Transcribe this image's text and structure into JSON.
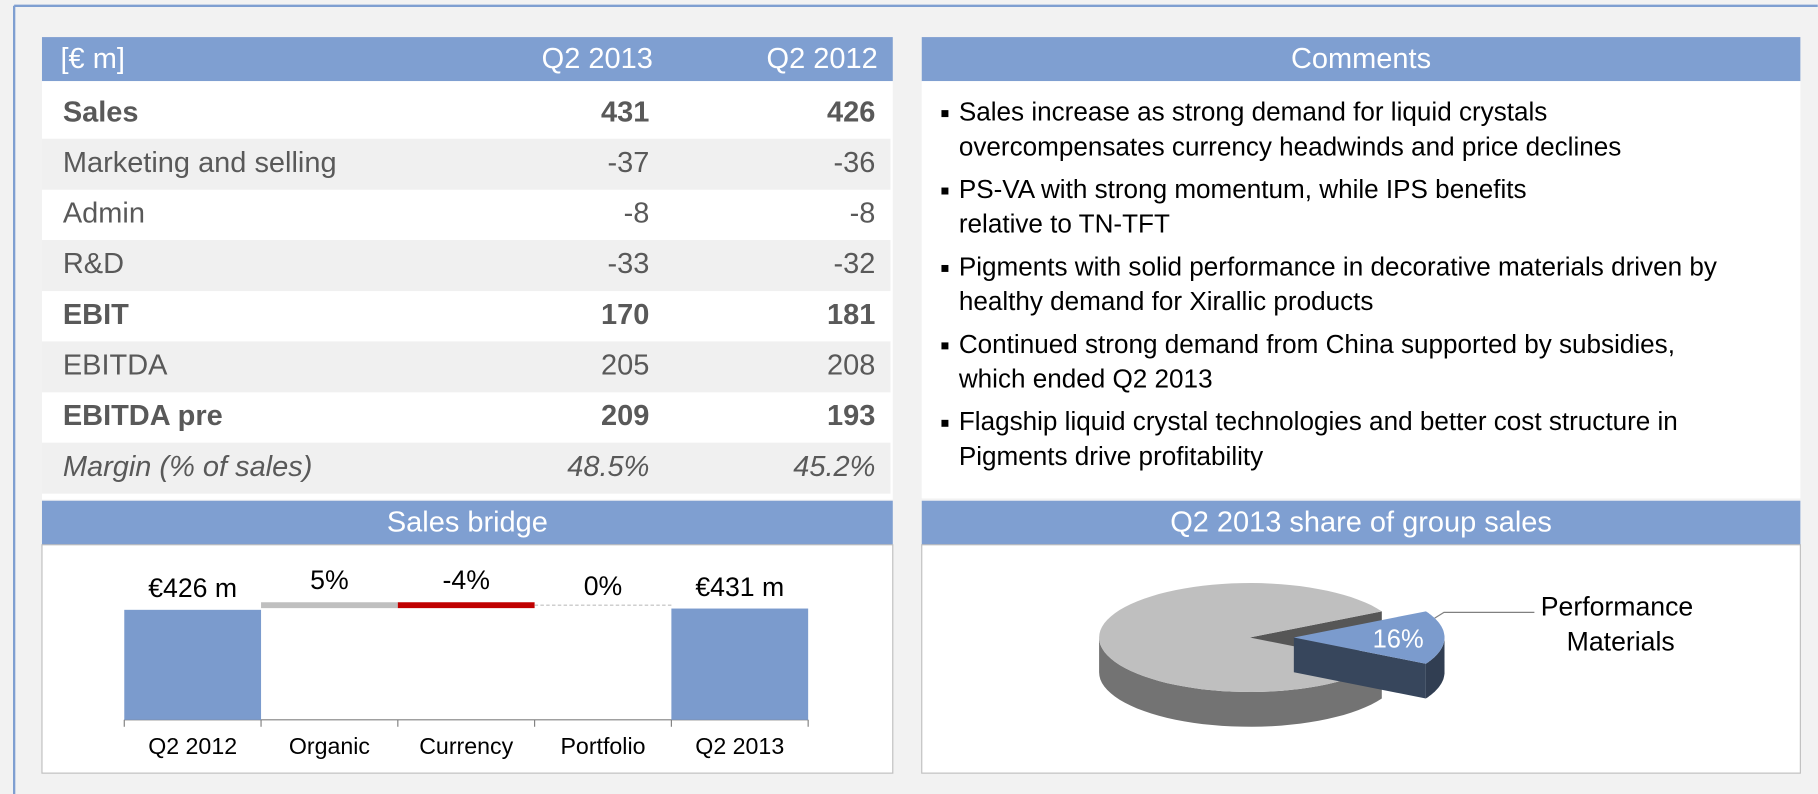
{
  "table": {
    "header": [
      "[€ m]",
      "Q2 2013",
      "Q2 2012"
    ],
    "rows": [
      [
        "Sales",
        431,
        426
      ],
      [
        "Marketing and selling",
        -37,
        -36
      ],
      [
        "Admin",
        -8,
        -8
      ],
      [
        "R&D",
        -33,
        -32
      ],
      [
        "EBIT",
        170,
        181
      ],
      [
        "EBITDA",
        205,
        208
      ],
      [
        "EBITDA pre",
        209,
        193
      ],
      [
        "Margin (% of sales)",
        "48.5%",
        "45.2%"
      ]
    ]
  },
  "comments": {
    "title": "Comments",
    "items": [
      [
        "Sales increase as strong demand for liquid crystals",
        "overcompensates currency headwinds and price declines"
      ],
      [
        "PS-VA with strong momentum, while IPS benefits",
        "relative to TN-TFT"
      ],
      [
        "Pigments with solid performance in decorative materials driven by",
        "healthy demand for Xirallic products"
      ],
      [
        "Continued strong demand from China supported by subsidies,",
        "which ended Q2 2013"
      ],
      [
        "Flagship liquid crystal technologies and better cost structure in",
        "Pigments drive profitability"
      ]
    ]
  },
  "chart_data": [
    {
      "type": "bridge",
      "title": "Sales bridge",
      "categories": [
        "Q2 2012",
        "Organic",
        "Currency",
        "Portfolio",
        "Q2 2013"
      ],
      "values": [
        426,
        5,
        -4,
        0,
        431
      ],
      "value_labels": [
        "€426 m",
        "5%",
        "-4%",
        "0%",
        "€431 m"
      ],
      "color": "#7b9bcd",
      "increase_color": "#bfbfbf",
      "decrease_color": "#c00000"
    },
    {
      "type": "pie3d",
      "title": "Q2 2013 share of group sales",
      "categories": [
        "Performance Materials",
        null
      ],
      "values": [
        16,
        84
      ],
      "value_labels": [
        "16%",
        null
      ],
      "colors": [
        "#7b9bcd",
        "#bfbfbf"
      ]
    }
  ]
}
